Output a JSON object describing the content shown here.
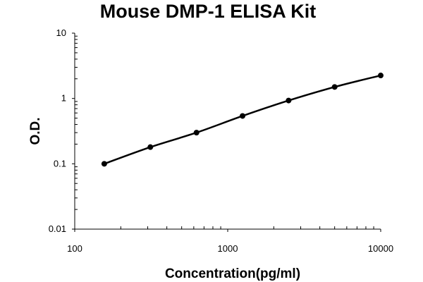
{
  "chart_data": {
    "type": "line",
    "title": "Mouse DMP-1 ELISA Kit",
    "xlabel": "Concentration(pg/ml)",
    "ylabel": "O.D.",
    "x_scale": "log",
    "y_scale": "log",
    "xlim": [
      100,
      10000
    ],
    "ylim": [
      0.01,
      10
    ],
    "x_ticks": [
      "100",
      "1000",
      "10000"
    ],
    "x_tick_values": [
      100,
      1000,
      10000
    ],
    "y_ticks": [
      "10",
      "1",
      "0.1",
      "0.01"
    ],
    "y_tick_values": [
      10,
      1,
      0.1,
      0.01
    ],
    "grid": false,
    "legend": "none",
    "series": [
      {
        "color": "#000000",
        "x": [
          156,
          312,
          625,
          1250,
          2500,
          5000,
          10000
        ],
        "y": [
          0.1,
          0.18,
          0.3,
          0.54,
          0.93,
          1.5,
          2.25
        ]
      }
    ]
  }
}
